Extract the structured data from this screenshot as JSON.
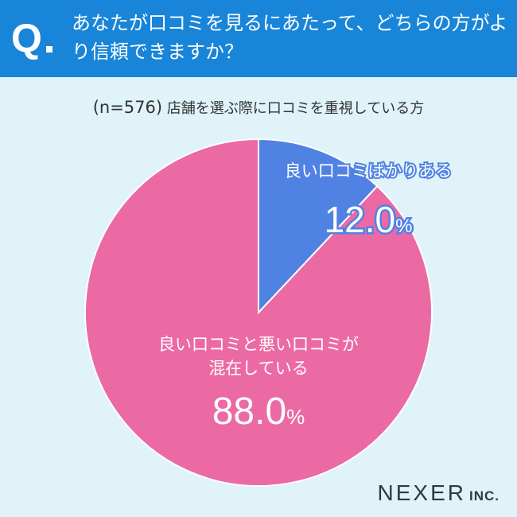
{
  "header": {
    "q_letter": "Q",
    "question": "あなたが口コミを見るにあたって、どちらの方がより信頼できますか？"
  },
  "subtitle": {
    "n_text": "(n=576)",
    "text": "店舗を選ぶ際に口コミを重視している方"
  },
  "chart_data": {
    "type": "pie",
    "title": "",
    "slices": [
      {
        "label_lines": [
          "良い口コミばかりある"
        ],
        "value": 12.0,
        "value_number": "12.0",
        "value_unit": "%",
        "color": "#5082e3"
      },
      {
        "label_lines": [
          "良い口コミと悪い口コミが",
          "混在している"
        ],
        "value": 88.0,
        "value_number": "88.0",
        "value_unit": "%",
        "color": "#eb6aa4"
      }
    ]
  },
  "logo": {
    "main": "NEXER",
    "suffix": "INC."
  }
}
